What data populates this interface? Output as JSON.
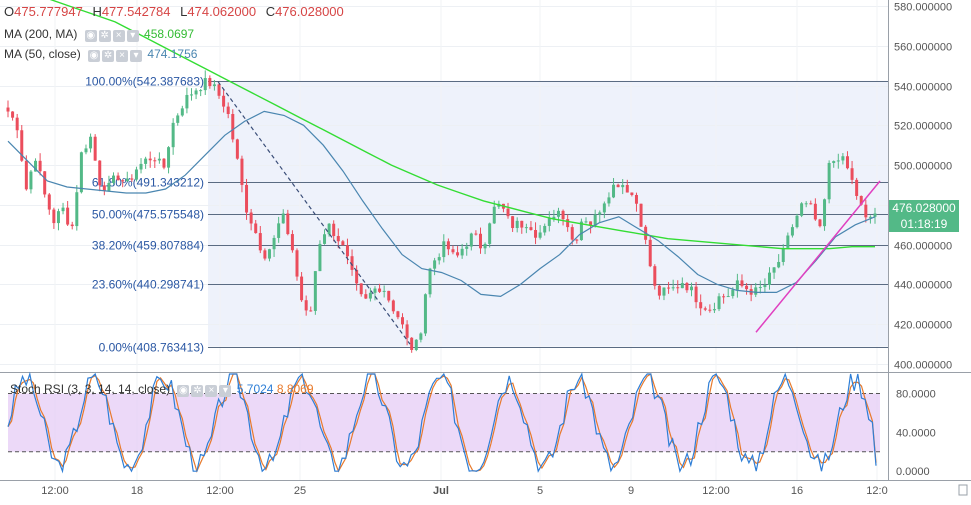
{
  "legend": {
    "ohlc": {
      "o_label": "O",
      "o": "475.777947",
      "h_label": "H",
      "h": "477.542784",
      "l_label": "L",
      "l": "474.062000",
      "c_label": "C",
      "c": "476.028000"
    },
    "ma200": {
      "label": "MA (200, MA)",
      "value": "458.0697"
    },
    "ma50": {
      "label": "MA (50, close)",
      "value": "474.1756"
    },
    "stoch": {
      "label": "Stoch RSI (3, 3, 14, 14, close)",
      "k": "5.7024",
      "d": "8.8069"
    }
  },
  "last_price": {
    "value": "476.028000",
    "countdown": "01:18:19"
  },
  "colors": {
    "up": "#53b987",
    "down": "#eb4d5c",
    "ma200": "#33dd33",
    "ma50": "#4a86b0",
    "fib": "#5a6b82",
    "fib_text": "#2a57a3",
    "trendline": "#e040c0",
    "stoch_k": "#2e7ed6",
    "stoch_d": "#e87a2c",
    "stoch_band": "#e6ccf5"
  },
  "chart_data": [
    {
      "type": "candlestick",
      "y_ticks": [
        "580.000000",
        "560.000000",
        "540.000000",
        "520.000000",
        "500.000000",
        "480.000000",
        "460.000000",
        "440.000000",
        "420.000000",
        "400.000000"
      ],
      "y_values": [
        580,
        560,
        540,
        520,
        500,
        480,
        460,
        440,
        420,
        400
      ],
      "ylim": [
        396,
        582
      ],
      "x_ticks": [
        "12:00",
        "18",
        "12:00",
        "25",
        "Jul",
        "5",
        "9",
        "12:00",
        "16",
        "12:0"
      ],
      "fib_levels": [
        {
          "label": "100.00%(542.387683)",
          "value": 542.387683
        },
        {
          "label": "61.80%(491.343212)",
          "value": 491.343212
        },
        {
          "label": "50.00%(475.575548)",
          "value": 475.575548
        },
        {
          "label": "38.20%(459.807884)",
          "value": 459.807884
        },
        {
          "label": "23.60%(440.298741)",
          "value": 440.298741
        },
        {
          "label": "0.00%(408.763413)",
          "value": 408.763413
        }
      ],
      "series_anchor_prices": [
        527,
        520,
        488,
        505,
        485,
        472,
        478,
        468,
        505,
        515,
        492,
        488,
        495,
        490,
        498,
        502,
        505,
        497,
        520,
        530,
        536,
        540,
        542,
        536,
        528,
        505,
        480,
        468,
        455,
        460,
        475,
        462,
        435,
        420,
        460,
        470,
        465,
        455,
        440,
        430,
        437,
        440,
        430,
        422,
        408,
        410,
        445,
        455,
        460,
        452,
        460,
        465,
        458,
        477,
        480,
        470,
        470,
        472,
        465,
        468,
        478,
        475,
        460,
        475,
        470,
        480,
        488,
        492,
        488,
        480,
        458,
        435,
        436,
        438,
        442,
        436,
        430,
        428,
        434,
        435,
        440,
        438,
        436,
        440,
        448,
        456,
        470,
        480,
        478,
        466,
        500,
        505,
        498,
        485,
        472,
        476
      ],
      "ma200_anchor_values": [
        592,
        588,
        584,
        580,
        576,
        572,
        566,
        560,
        554,
        548,
        542,
        536,
        530,
        524,
        518,
        512,
        506,
        500,
        495,
        490,
        486,
        482,
        479,
        476,
        473,
        471,
        469,
        467,
        465,
        463,
        462,
        461,
        460,
        459,
        458,
        458,
        458,
        459,
        459
      ],
      "ma50_anchor_values": [
        512,
        502,
        492,
        489,
        488,
        487,
        486,
        486,
        488,
        495,
        505,
        515,
        522,
        527,
        525,
        520,
        510,
        497,
        482,
        468,
        455,
        448,
        446,
        442,
        435,
        434,
        440,
        448,
        455,
        465,
        471,
        474,
        468,
        462,
        454,
        445,
        440,
        437,
        436,
        436,
        441,
        452,
        464,
        470,
        474
      ]
    },
    {
      "type": "line",
      "title": "Stoch RSI (3, 3, 14, 14, close)",
      "y_ticks": [
        "80.0000",
        "40.0000",
        "0.0000"
      ],
      "y_values": [
        80,
        40,
        0
      ],
      "ylim": [
        -8,
        100
      ],
      "band": [
        20,
        80
      ],
      "series": [
        {
          "name": "%K",
          "last": 5.7024
        },
        {
          "name": "%D",
          "last": 8.8069
        }
      ]
    }
  ]
}
